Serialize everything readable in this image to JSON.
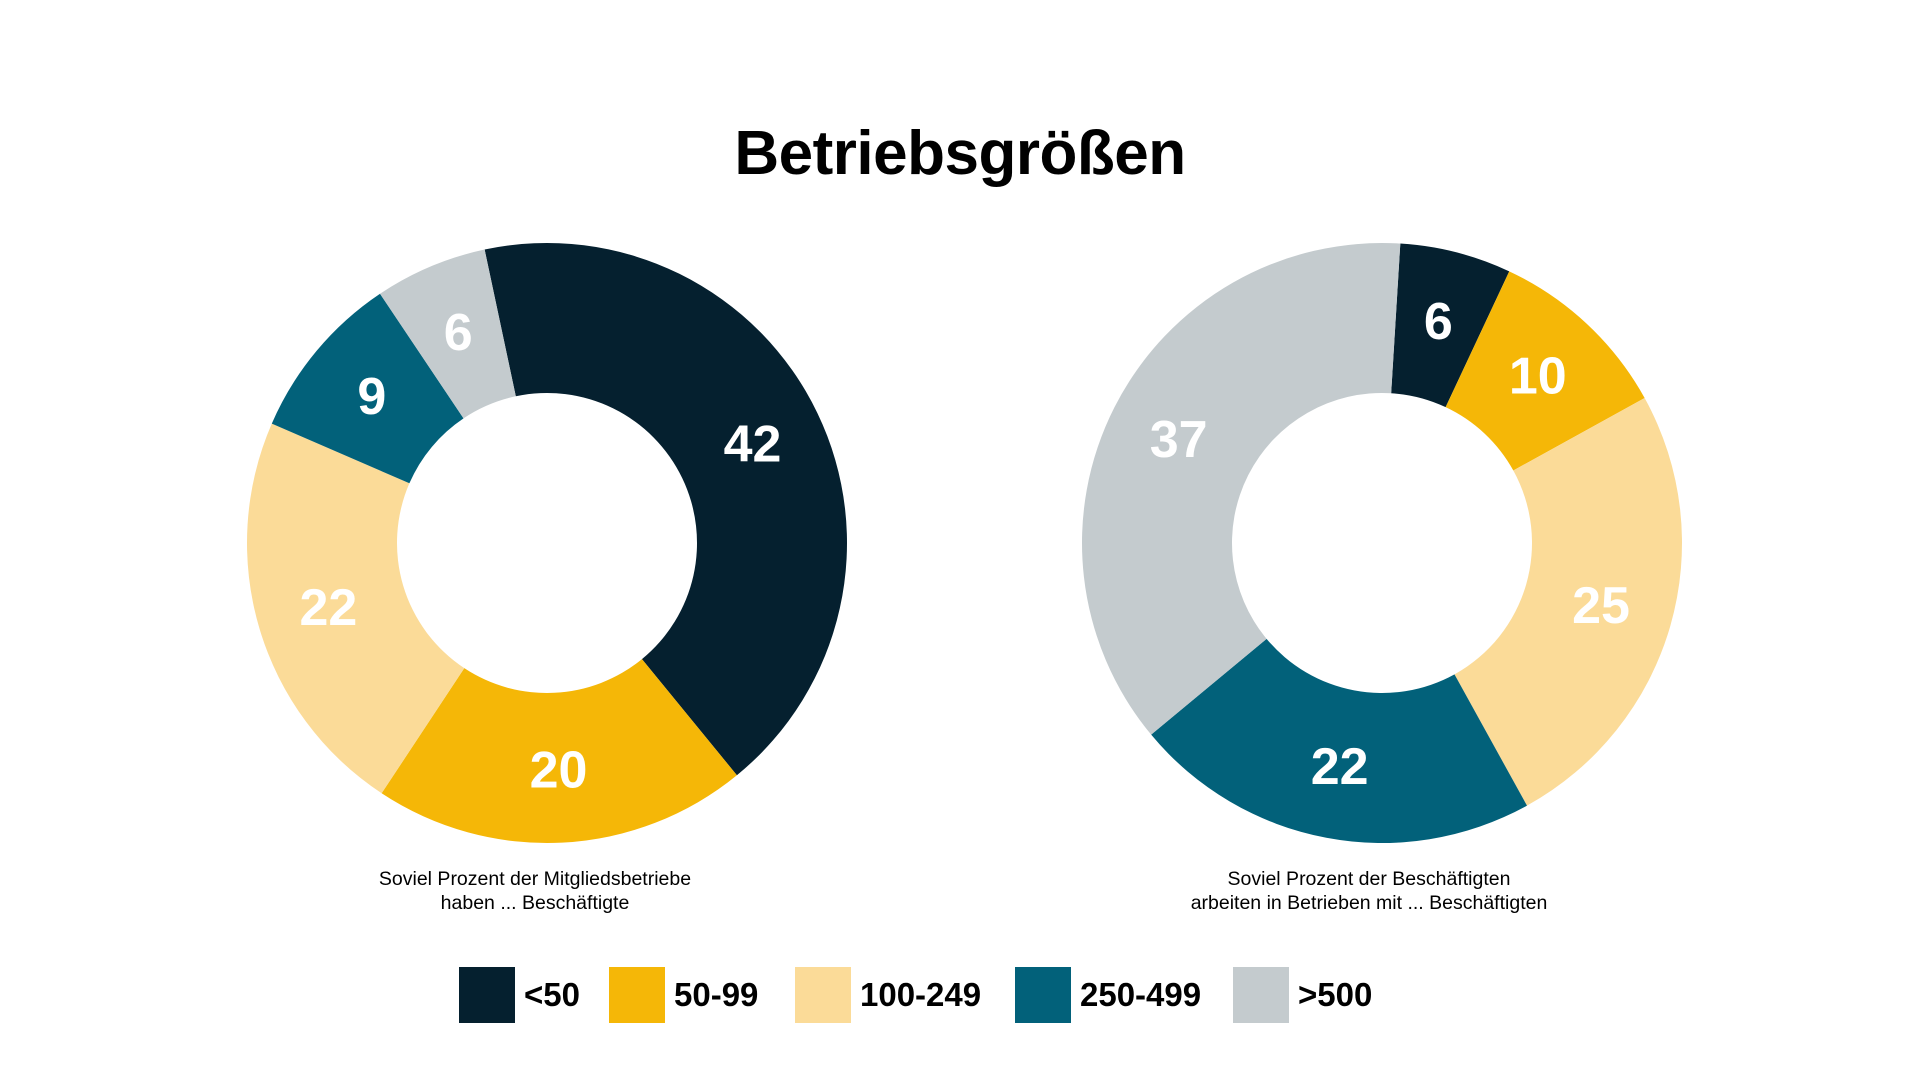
{
  "title": "Betriebsgrößen",
  "colors": {
    "dark_navy": "#05202f",
    "amber": "#f5b707",
    "light_sand": "#fbdb98",
    "teal": "#02617a",
    "light_gray": "#c4cbce",
    "label_white": "#ffffff"
  },
  "chart_data": [
    {
      "type": "pie",
      "variant": "donut",
      "caption_line1": "Soviel Prozent der Mitgliedsbetriebe",
      "caption_line2": "haben ... Beschäftigte",
      "categories": [
        "<50",
        "50-99",
        "100-249",
        "250-499",
        ">500"
      ],
      "values": [
        42,
        20,
        22,
        9,
        6
      ],
      "label_colors": [
        "#ffffff",
        "#ffffff",
        "#ffffff",
        "#ffffff",
        "#ffffff"
      ]
    },
    {
      "type": "pie",
      "variant": "donut",
      "caption_line1": "Soviel Prozent der Beschäftigten",
      "caption_line2": "arbeiten in Betrieben mit ... Beschäftigten",
      "categories": [
        "<50",
        "50-99",
        "100-249",
        "250-499",
        ">500"
      ],
      "values": [
        6,
        10,
        25,
        22,
        37
      ],
      "label_colors": [
        "#ffffff",
        "#ffffff",
        "#ffffff",
        "#ffffff",
        "#ffffff"
      ]
    }
  ],
  "legend": [
    {
      "label": "<50",
      "color": "#05202f"
    },
    {
      "label": "50-99",
      "color": "#f5b707"
    },
    {
      "label": "100-249",
      "color": "#fbdb98"
    },
    {
      "label": "250-499",
      "color": "#02617a"
    },
    {
      "label": ">500",
      "color": "#c4cbce"
    }
  ]
}
